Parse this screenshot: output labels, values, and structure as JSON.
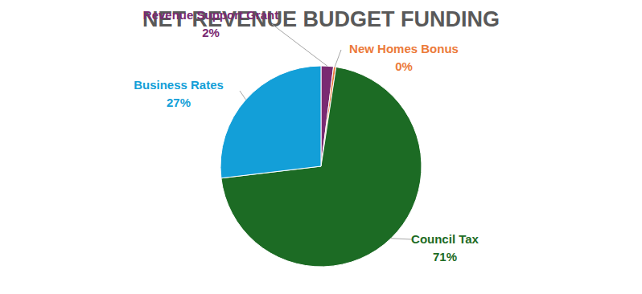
{
  "chart_data": {
    "type": "pie",
    "title": "NET REVENUE BUDGET FUNDING",
    "categories": [
      "Revenue Support Grant",
      "New Homes Bonus",
      "Council Tax",
      "Business Rates"
    ],
    "values": [
      2,
      0.4,
      71,
      27
    ],
    "value_labels": [
      "2%",
      "0%",
      "71%",
      "27%"
    ],
    "colors": [
      "#7a2a72",
      "#ec7a3a",
      "#1c6b24",
      "#139fd8"
    ],
    "data_labels": true
  }
}
